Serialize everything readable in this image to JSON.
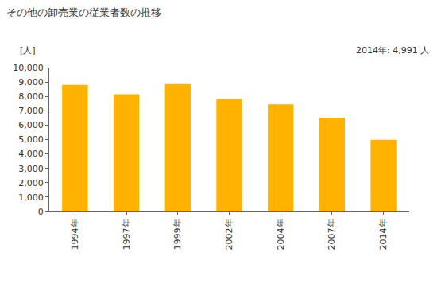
{
  "chart_data": {
    "type": "bar",
    "title": "その他の卸売業の従業者数の推移",
    "y_label": "[人]",
    "annotation": "2014年: 4,991 人",
    "categories": [
      "1994年",
      "1997年",
      "1999年",
      "2002年",
      "2004年",
      "2007年",
      "2014年"
    ],
    "values": [
      8800,
      8150,
      8850,
      7850,
      7450,
      6500,
      4991
    ],
    "color": "#ffb300",
    "ylim": [
      0,
      10000
    ],
    "yticks": [
      0,
      {
        "value": 1000,
        "label": "1,000"
      },
      {
        "value": 2000,
        "label": "2,000"
      },
      {
        "value": 3000,
        "label": "3,000"
      },
      {
        "value": 4000,
        "label": "4,000"
      },
      {
        "value": 5000,
        "label": "5,000"
      },
      {
        "value": 6000,
        "label": "6,000"
      },
      {
        "value": 7000,
        "label": "7,000"
      },
      {
        "value": 8000,
        "label": "8,000"
      },
      {
        "value": 9000,
        "label": "9,000"
      },
      {
        "value": 10000,
        "label": "10,000"
      }
    ],
    "grid": false
  }
}
